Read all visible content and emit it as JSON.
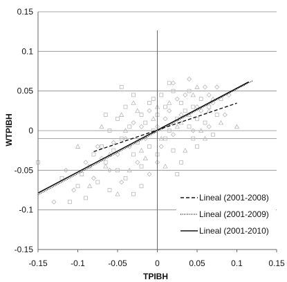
{
  "chart_data": {
    "type": "scatter",
    "title": "",
    "xlabel": "TPIBH",
    "ylabel": "WTPIBH",
    "xlim": [
      -0.15,
      0.15
    ],
    "ylim": [
      -0.15,
      0.15
    ],
    "x_ticks": [
      "-0.15",
      "-0.1",
      "-0.05",
      "0",
      "0.05",
      "0.1",
      "0.15"
    ],
    "y_ticks": [
      "0.15",
      "0.1",
      "0.05",
      "0",
      "-0.05",
      "-0.1",
      "-0.15"
    ],
    "grid": "horizontal",
    "legend_position": "bottom-right",
    "series": [
      {
        "marker": "square",
        "points": [
          [
            -0.15,
            -0.04
          ],
          [
            -0.12,
            -0.06
          ],
          [
            -0.11,
            -0.09
          ],
          [
            -0.1,
            -0.07
          ],
          [
            -0.095,
            -0.055
          ],
          [
            -0.09,
            -0.085
          ],
          [
            -0.085,
            -0.045
          ],
          [
            -0.08,
            -0.03
          ],
          [
            -0.075,
            -0.065
          ],
          [
            -0.07,
            -0.02
          ],
          [
            -0.065,
            -0.04
          ],
          [
            -0.06,
            0.0
          ],
          [
            -0.06,
            -0.075
          ],
          [
            -0.055,
            -0.025
          ],
          [
            -0.05,
            0.015
          ],
          [
            -0.05,
            -0.05
          ],
          [
            -0.045,
            -0.01
          ],
          [
            -0.04,
            0.03
          ],
          [
            -0.04,
            -0.06
          ],
          [
            -0.035,
            0.005
          ],
          [
            -0.03,
            -0.03
          ],
          [
            -0.03,
            0.045
          ],
          [
            -0.025,
            -0.015
          ],
          [
            -0.02,
            0.02
          ],
          [
            -0.02,
            -0.045
          ],
          [
            -0.015,
            0.01
          ],
          [
            -0.01,
            -0.02
          ],
          [
            -0.01,
            0.035
          ],
          [
            -0.005,
            0.0
          ],
          [
            0.0,
            -0.03
          ],
          [
            0.0,
            0.02
          ],
          [
            0.005,
            0.045
          ],
          [
            0.01,
            -0.01
          ],
          [
            0.01,
            0.03
          ],
          [
            0.015,
            0.0
          ],
          [
            0.02,
            0.05
          ],
          [
            0.02,
            -0.025
          ],
          [
            0.025,
            0.015
          ],
          [
            0.03,
            0.035
          ],
          [
            0.03,
            -0.04
          ],
          [
            0.035,
            0.025
          ],
          [
            0.04,
            0.005
          ],
          [
            0.04,
            0.05
          ],
          [
            0.045,
            0.03
          ],
          [
            0.05,
            -0.02
          ],
          [
            0.05,
            0.015
          ],
          [
            0.055,
            0.04
          ],
          [
            0.06,
            0.01
          ],
          [
            0.065,
            0.03
          ],
          [
            0.07,
            -0.005
          ],
          [
            0.075,
            0.02
          ],
          [
            0.08,
            0.04
          ],
          [
            -0.045,
            0.055
          ],
          [
            -0.02,
            -0.07
          ],
          [
            0.015,
            0.06
          ],
          [
            -0.03,
            -0.08
          ],
          [
            0.025,
            -0.055
          ],
          [
            -0.065,
            0.02
          ],
          [
            0.045,
            -0.01
          ],
          [
            -0.005,
            0.04
          ]
        ]
      },
      {
        "marker": "diamond",
        "points": [
          [
            -0.13,
            -0.09
          ],
          [
            -0.115,
            -0.05
          ],
          [
            -0.105,
            -0.075
          ],
          [
            -0.09,
            -0.04
          ],
          [
            -0.08,
            -0.06
          ],
          [
            -0.07,
            -0.035
          ],
          [
            -0.06,
            -0.05
          ],
          [
            -0.05,
            -0.03
          ],
          [
            -0.045,
            -0.065
          ],
          [
            -0.035,
            -0.02
          ],
          [
            -0.025,
            -0.04
          ],
          [
            -0.015,
            -0.01
          ],
          [
            -0.01,
            -0.055
          ],
          [
            0.0,
            0.005
          ],
          [
            0.005,
            -0.02
          ],
          [
            0.015,
            0.025
          ],
          [
            0.02,
            -0.005
          ],
          [
            0.03,
            0.02
          ],
          [
            0.035,
            0.045
          ],
          [
            0.045,
            0.0
          ],
          [
            0.05,
            0.03
          ],
          [
            0.06,
            0.055
          ],
          [
            0.065,
            0.005
          ],
          [
            0.07,
            0.035
          ],
          [
            0.085,
            0.02
          ],
          [
            0.09,
            0.045
          ],
          [
            -0.02,
            0.005
          ],
          [
            0.01,
            0.015
          ],
          [
            0.04,
            0.065
          ],
          [
            -0.04,
            -0.01
          ],
          [
            0.025,
            0.04
          ],
          [
            0.055,
            0.025
          ],
          [
            -0.055,
            -0.015
          ],
          [
            0.0,
            -0.04
          ],
          [
            0.02,
            0.06
          ],
          [
            -0.03,
            0.01
          ],
          [
            0.065,
            0.045
          ],
          [
            -0.075,
            -0.02
          ],
          [
            0.075,
            0.055
          ],
          [
            -0.01,
            0.025
          ]
        ]
      },
      {
        "marker": "triangle",
        "points": [
          [
            -0.1,
            -0.02
          ],
          [
            -0.085,
            -0.07
          ],
          [
            -0.07,
            0.005
          ],
          [
            -0.06,
            -0.03
          ],
          [
            -0.05,
            -0.08
          ],
          [
            -0.04,
            0.0
          ],
          [
            -0.035,
            -0.05
          ],
          [
            -0.025,
            0.025
          ],
          [
            -0.015,
            -0.035
          ],
          [
            -0.005,
            0.015
          ],
          [
            0.005,
            -0.01
          ],
          [
            0.015,
            0.035
          ],
          [
            0.025,
            0.005
          ],
          [
            0.035,
            -0.025
          ],
          [
            0.045,
            0.045
          ],
          [
            0.055,
            0.0
          ],
          [
            0.065,
            0.025
          ],
          [
            0.08,
            0.01
          ],
          [
            0.1,
            0.005
          ],
          [
            -0.03,
            0.035
          ],
          [
            0.01,
            -0.045
          ],
          [
            0.04,
            0.02
          ],
          [
            -0.065,
            -0.045
          ],
          [
            0.05,
            0.055
          ],
          [
            -0.045,
            0.02
          ],
          [
            0.03,
            0.01
          ],
          [
            0.0,
            0.03
          ],
          [
            -0.02,
            -0.025
          ],
          [
            0.07,
            0.04
          ],
          [
            0.06,
            -0.01
          ]
        ]
      }
    ],
    "trendlines": [
      {
        "name": "Lineal (2001-2008)",
        "style": "dashed",
        "x": [
          -0.08,
          0.1
        ],
        "y": [
          -0.0265,
          0.0347
        ]
      },
      {
        "name": "Lineal (2001-2009)",
        "style": "dotted",
        "x": [
          -0.15,
          0.12
        ],
        "y": [
          -0.081,
          0.063
        ]
      },
      {
        "name": "Lineal (2001-2010)",
        "style": "solid",
        "x": [
          -0.15,
          0.115
        ],
        "y": [
          -0.0787,
          0.0615
        ]
      }
    ]
  }
}
